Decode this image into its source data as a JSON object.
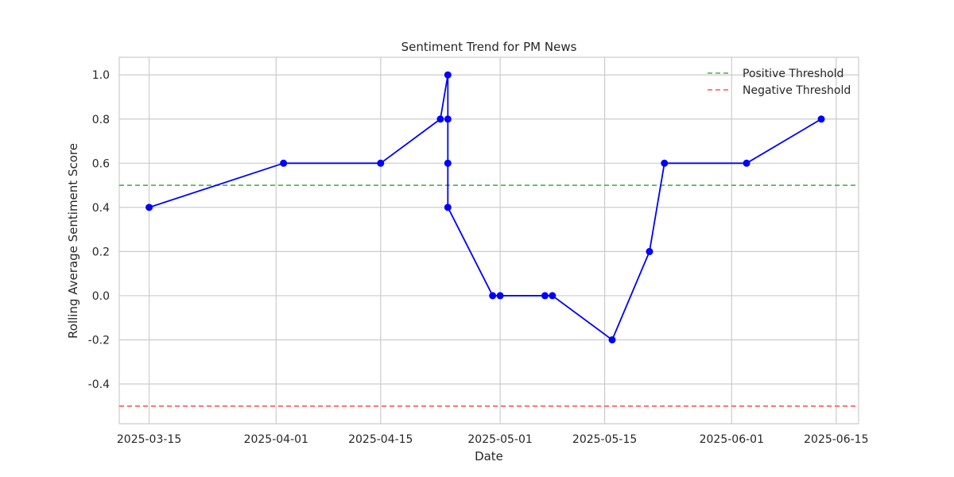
{
  "chart_data": {
    "type": "line",
    "title": "Sentiment Trend for PM News",
    "xlabel": "Date",
    "ylabel": "Rolling Average Sentiment Score",
    "xlim": [
      "2025-03-11",
      "2025-06-18"
    ],
    "ylim": [
      -0.58,
      1.08
    ],
    "x_ticks": [
      "2025-03-15",
      "2025-04-01",
      "2025-04-15",
      "2025-05-01",
      "2025-05-15",
      "2025-06-01",
      "2025-06-15"
    ],
    "y_ticks": [
      -0.4,
      -0.2,
      0.0,
      0.2,
      0.4,
      0.6,
      0.8,
      1.0
    ],
    "grid": true,
    "legend_position": "top-right",
    "series": [
      {
        "color": "#0000ff",
        "marker": "circle",
        "points": [
          {
            "x": "2025-03-15",
            "y": 0.4
          },
          {
            "x": "2025-04-02",
            "y": 0.6
          },
          {
            "x": "2025-04-15",
            "y": 0.6
          },
          {
            "x": "2025-04-23",
            "y": 0.8
          },
          {
            "x": "2025-04-24",
            "y": 1.0
          },
          {
            "x": "2025-04-24",
            "y": 0.8
          },
          {
            "x": "2025-04-24",
            "y": 0.6
          },
          {
            "x": "2025-04-24",
            "y": 0.4
          },
          {
            "x": "2025-04-30",
            "y": 0.0
          },
          {
            "x": "2025-05-01",
            "y": 0.0
          },
          {
            "x": "2025-05-07",
            "y": 0.0
          },
          {
            "x": "2025-05-08",
            "y": 0.0
          },
          {
            "x": "2025-05-16",
            "y": -0.2
          },
          {
            "x": "2025-05-21",
            "y": 0.2
          },
          {
            "x": "2025-05-23",
            "y": 0.6
          },
          {
            "x": "2025-06-03",
            "y": 0.6
          },
          {
            "x": "2025-06-13",
            "y": 0.8
          }
        ]
      }
    ],
    "thresholds": [
      {
        "name": "Positive Threshold",
        "y": 0.5,
        "color": "#4daf4a",
        "style": "dashed"
      },
      {
        "name": "Negative Threshold",
        "y": -0.5,
        "color": "#ff5555",
        "style": "dashed"
      }
    ]
  }
}
